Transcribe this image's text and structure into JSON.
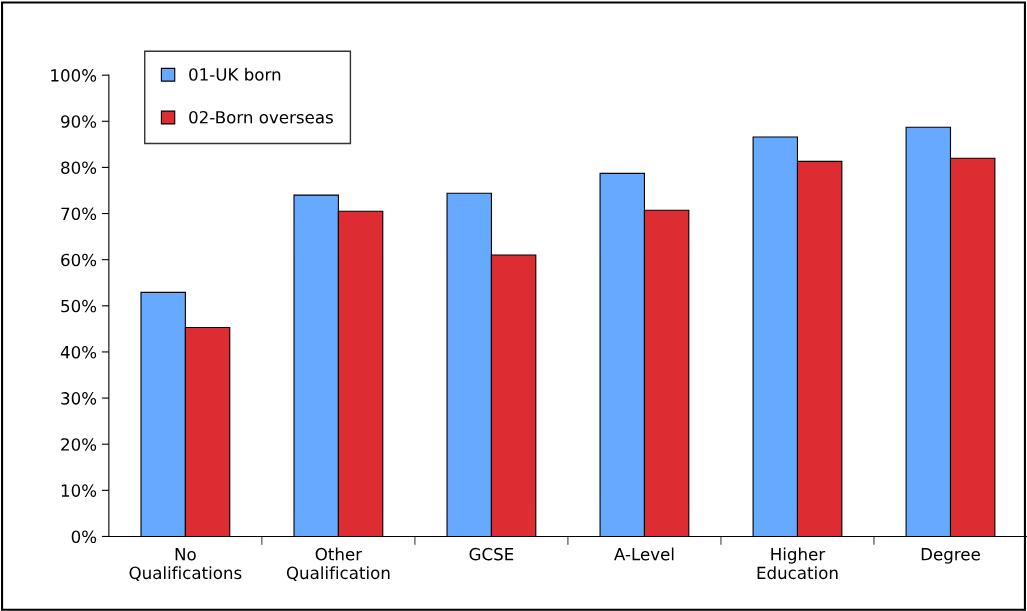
{
  "chart_data": {
    "type": "bar",
    "categories": [
      "No\nQualifications",
      "Other\nQualification",
      "GCSE",
      "A-Level",
      "Higher\nEducation",
      "Degree"
    ],
    "series": [
      {
        "name": "01-UK born",
        "color": "#66aaff",
        "values": [
          52.9,
          74.0,
          74.4,
          78.7,
          86.6,
          88.7
        ]
      },
      {
        "name": "02-Born overseas",
        "color": "#dd2d32",
        "values": [
          45.3,
          70.5,
          61.0,
          70.7,
          81.3,
          82.0
        ]
      }
    ],
    "ylim": [
      0,
      100
    ],
    "yticks": [
      {
        "value": 0,
        "label": "0%"
      },
      {
        "value": 10,
        "label": "10%"
      },
      {
        "value": 20,
        "label": "20%"
      },
      {
        "value": 30,
        "label": "30%"
      },
      {
        "value": 40,
        "label": "40%"
      },
      {
        "value": 50,
        "label": "50%"
      },
      {
        "value": 60,
        "label": "60%"
      },
      {
        "value": 70,
        "label": "70%"
      },
      {
        "value": 80,
        "label": "80%"
      },
      {
        "value": 90,
        "label": "90%"
      },
      {
        "value": 100,
        "label": "100%"
      }
    ],
    "legend": "top left",
    "grid": false
  }
}
